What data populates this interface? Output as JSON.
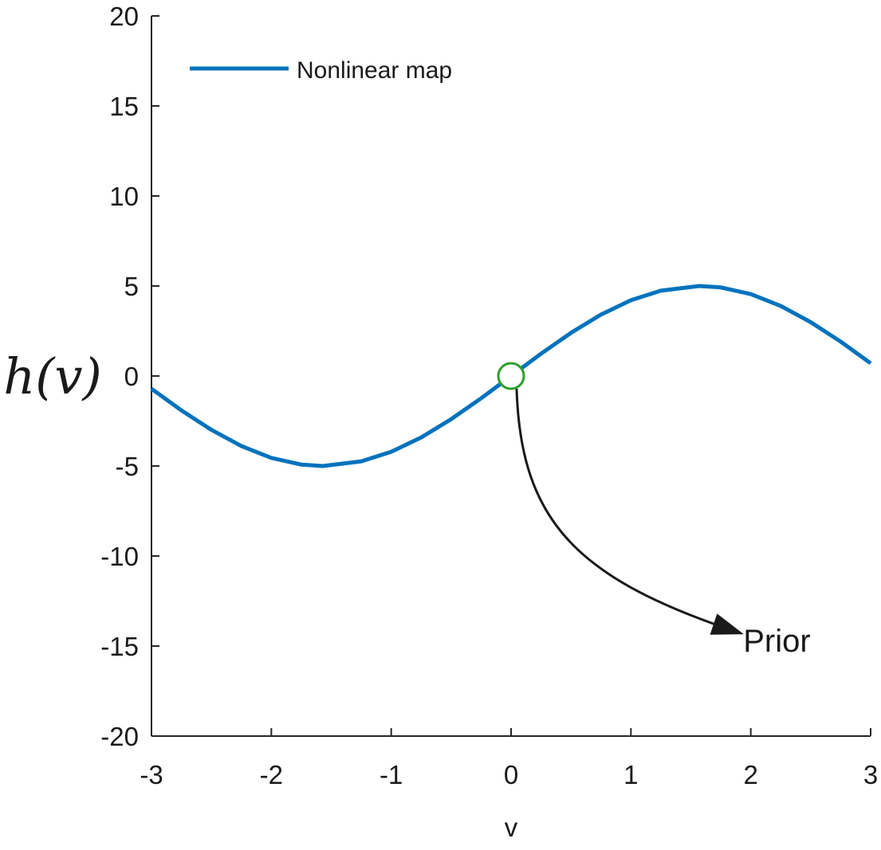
{
  "chart_data": {
    "type": "line",
    "title": "",
    "xlabel": "v",
    "ylabel": "h(v)",
    "xlim": [
      -3,
      3
    ],
    "ylim": [
      -20,
      20
    ],
    "x_ticks": [
      -3,
      -2,
      -1,
      0,
      1,
      2,
      3
    ],
    "x_tick_labels": [
      "-3",
      "-2",
      "-1",
      "0",
      "1",
      "2",
      "3"
    ],
    "y_ticks": [
      20,
      15,
      10,
      5,
      0,
      -5,
      -10,
      -15,
      -20
    ],
    "y_tick_labels": [
      "20",
      "15",
      "10",
      "5",
      "0",
      "-5",
      "-10",
      "-15",
      "-20"
    ],
    "grid": false,
    "legend_position": "top-left",
    "series": [
      {
        "name": "Nonlinear map",
        "color": "#0072BD",
        "x": [
          -3.0,
          -2.75,
          -2.5,
          -2.25,
          -2.0,
          -1.75,
          -1.5708,
          -1.25,
          -1.0,
          -0.75,
          -0.5,
          -0.25,
          0.0,
          0.25,
          0.5,
          0.75,
          1.0,
          1.25,
          1.5708,
          1.75,
          2.0,
          2.25,
          2.5,
          2.75,
          3.0
        ],
        "y": [
          -0.71,
          -1.91,
          -2.99,
          -3.89,
          -4.55,
          -4.92,
          -5.0,
          -4.74,
          -4.21,
          -3.41,
          -2.4,
          -1.24,
          0.0,
          1.24,
          2.4,
          3.41,
          4.21,
          4.74,
          5.0,
          4.92,
          4.55,
          3.89,
          2.99,
          1.91,
          0.71
        ]
      }
    ],
    "markers": [
      {
        "name": "Prior",
        "x": 0,
        "y": 0,
        "shape": "circle",
        "fill": "none",
        "color": "#2CA02C"
      }
    ],
    "annotations": [
      {
        "text": "Prior",
        "points_to": {
          "x": 0,
          "y": 0
        },
        "label_position": {
          "x": 2.17,
          "y": -14.7
        },
        "color": "#1a1a1a"
      }
    ]
  }
}
